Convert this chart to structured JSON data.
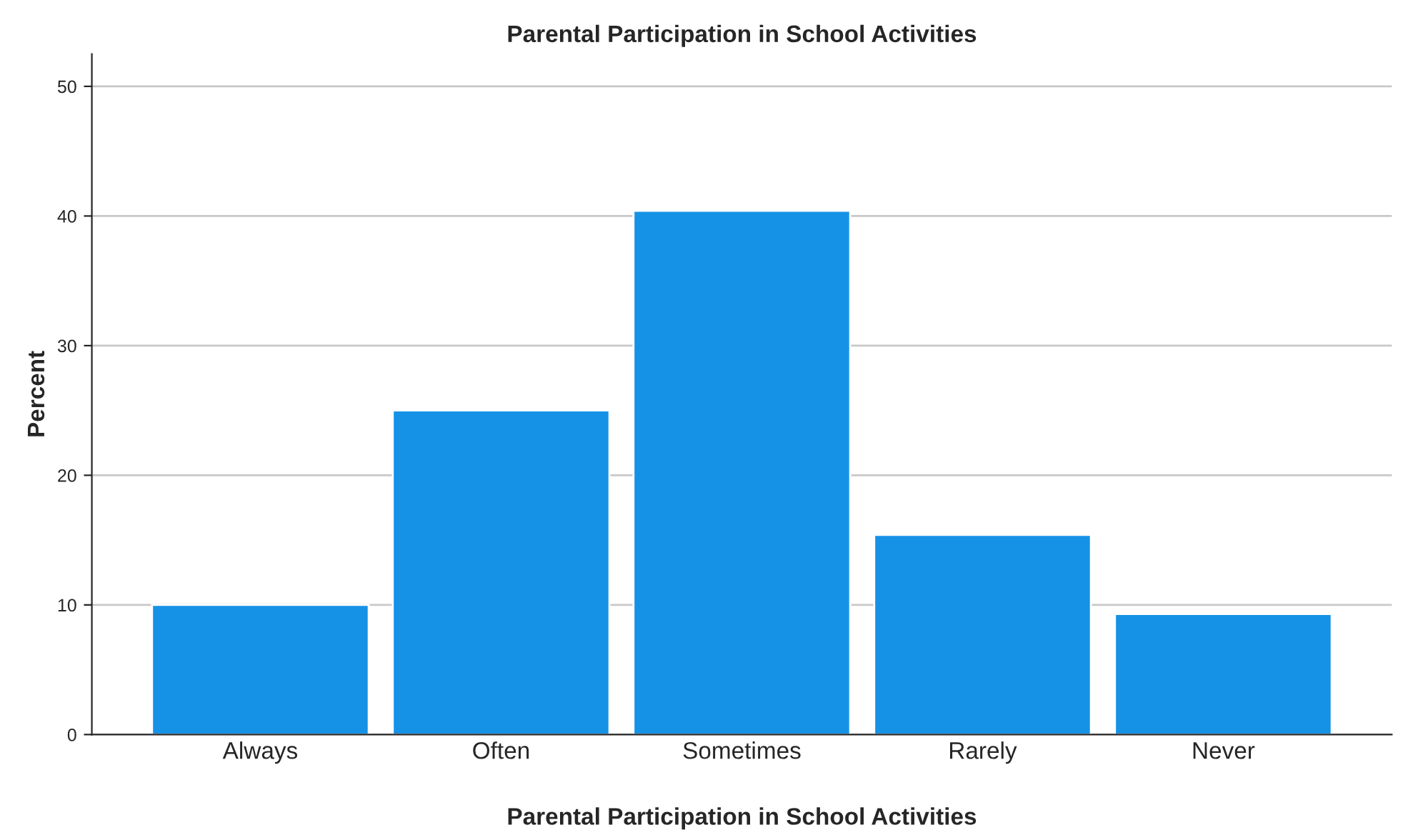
{
  "chart_data": {
    "type": "bar",
    "title": "Parental Participation in School Activities",
    "xlabel": "Parental Participation in School Activities",
    "ylabel": "Percent",
    "categories": [
      "Always",
      "Often",
      "Sometimes",
      "Rarely",
      "Never"
    ],
    "values": [
      10.0,
      25.0,
      40.4,
      15.4,
      9.3
    ],
    "color": "#1592e6",
    "ylim": [
      0,
      52.5
    ],
    "yticks": [
      0,
      10,
      20,
      30,
      40,
      50
    ],
    "grid": "y",
    "legend": false
  }
}
